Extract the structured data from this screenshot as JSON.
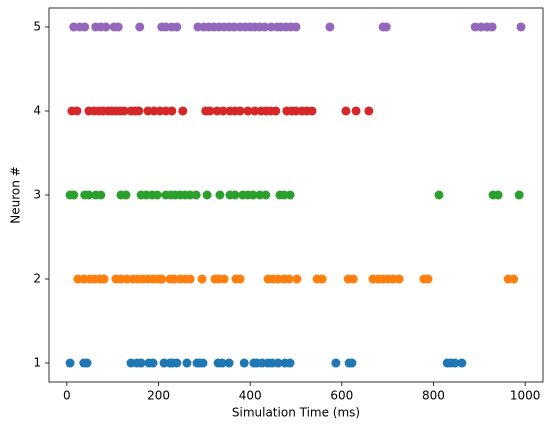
{
  "chart_data": {
    "type": "scatter",
    "x_label": "Simulation Time (ms)",
    "y_label": "Neuron #",
    "xlim": [
      -39,
      1039
    ],
    "ylim": [
      0.774,
      5.226
    ],
    "xticks": [
      0,
      200,
      400,
      600,
      800,
      1000
    ],
    "yticks": [
      1,
      2,
      3,
      4,
      5
    ],
    "series": [
      {
        "color": "#1f77b4",
        "x": [
          7,
          37,
          44,
          140,
          153,
          162,
          179,
          188,
          212,
          225,
          231,
          240,
          262,
          284,
          290,
          297,
          330,
          339,
          354,
          387,
          408,
          415,
          426,
          439,
          448,
          461,
          476,
          487,
          587,
          616,
          622,
          830,
          838,
          847,
          862
        ],
        "values": [
          1,
          1,
          1,
          1,
          1,
          1,
          1,
          1,
          1,
          1,
          1,
          1,
          1,
          1,
          1,
          1,
          1,
          1,
          1,
          1,
          1,
          1,
          1,
          1,
          1,
          1,
          1,
          1,
          1,
          1,
          1,
          1,
          1,
          1,
          1
        ]
      },
      {
        "color": "#ff7f0e",
        "x": [
          24,
          37,
          50,
          61,
          72,
          81,
          107,
          118,
          131,
          144,
          155,
          166,
          177,
          188,
          199,
          207,
          225,
          234,
          247,
          258,
          269,
          295,
          323,
          332,
          343,
          369,
          378,
          439,
          450,
          461,
          474,
          485,
          502,
          546,
          557,
          614,
          625,
          668,
          679,
          690,
          701,
          712,
          725,
          779,
          788,
          963,
          975
        ],
        "values": [
          2,
          2,
          2,
          2,
          2,
          2,
          2,
          2,
          2,
          2,
          2,
          2,
          2,
          2,
          2,
          2,
          2,
          2,
          2,
          2,
          2,
          2,
          2,
          2,
          2,
          2,
          2,
          2,
          2,
          2,
          2,
          2,
          2,
          2,
          2,
          2,
          2,
          2,
          2,
          2,
          2,
          2,
          2,
          2,
          2,
          2,
          2
        ]
      },
      {
        "color": "#2ca02c",
        "x": [
          7,
          15,
          39,
          48,
          63,
          74,
          118,
          129,
          162,
          173,
          186,
          197,
          216,
          227,
          236,
          247,
          258,
          269,
          282,
          306,
          334,
          356,
          367,
          384,
          395,
          406,
          421,
          434,
          465,
          474,
          487,
          812,
          930,
          941,
          987
        ],
        "values": [
          3,
          3,
          3,
          3,
          3,
          3,
          3,
          3,
          3,
          3,
          3,
          3,
          3,
          3,
          3,
          3,
          3,
          3,
          3,
          3,
          3,
          3,
          3,
          3,
          3,
          3,
          3,
          3,
          3,
          3,
          3,
          3,
          3,
          3,
          3
        ]
      },
      {
        "color": "#d62728",
        "x": [
          11,
          22,
          48,
          59,
          70,
          79,
          90,
          98,
          107,
          116,
          125,
          140,
          149,
          157,
          177,
          190,
          203,
          216,
          229,
          253,
          303,
          312,
          328,
          341,
          356,
          367,
          378,
          395,
          410,
          424,
          435,
          445,
          456,
          480,
          491,
          500,
          513,
          524,
          535,
          609,
          631,
          659
        ],
        "values": [
          4,
          4,
          4,
          4,
          4,
          4,
          4,
          4,
          4,
          4,
          4,
          4,
          4,
          4,
          4,
          4,
          4,
          4,
          4,
          4,
          4,
          4,
          4,
          4,
          4,
          4,
          4,
          4,
          4,
          4,
          4,
          4,
          4,
          4,
          4,
          4,
          4,
          4,
          4,
          4,
          4,
          4
        ]
      },
      {
        "color": "#9467bd",
        "x": [
          15,
          28,
          39,
          63,
          74,
          85,
          103,
          112,
          159,
          207,
          216,
          229,
          240,
          286,
          299,
          310,
          321,
          332,
          343,
          354,
          365,
          378,
          389,
          400,
          410,
          421,
          432,
          446,
          459,
          467,
          478,
          489,
          500,
          574,
          690,
          697,
          891,
          904,
          917,
          928,
          991
        ],
        "values": [
          5,
          5,
          5,
          5,
          5,
          5,
          5,
          5,
          5,
          5,
          5,
          5,
          5,
          5,
          5,
          5,
          5,
          5,
          5,
          5,
          5,
          5,
          5,
          5,
          5,
          5,
          5,
          5,
          5,
          5,
          5,
          5,
          5,
          5,
          5,
          5,
          5,
          5,
          5,
          5,
          5
        ]
      }
    ]
  }
}
